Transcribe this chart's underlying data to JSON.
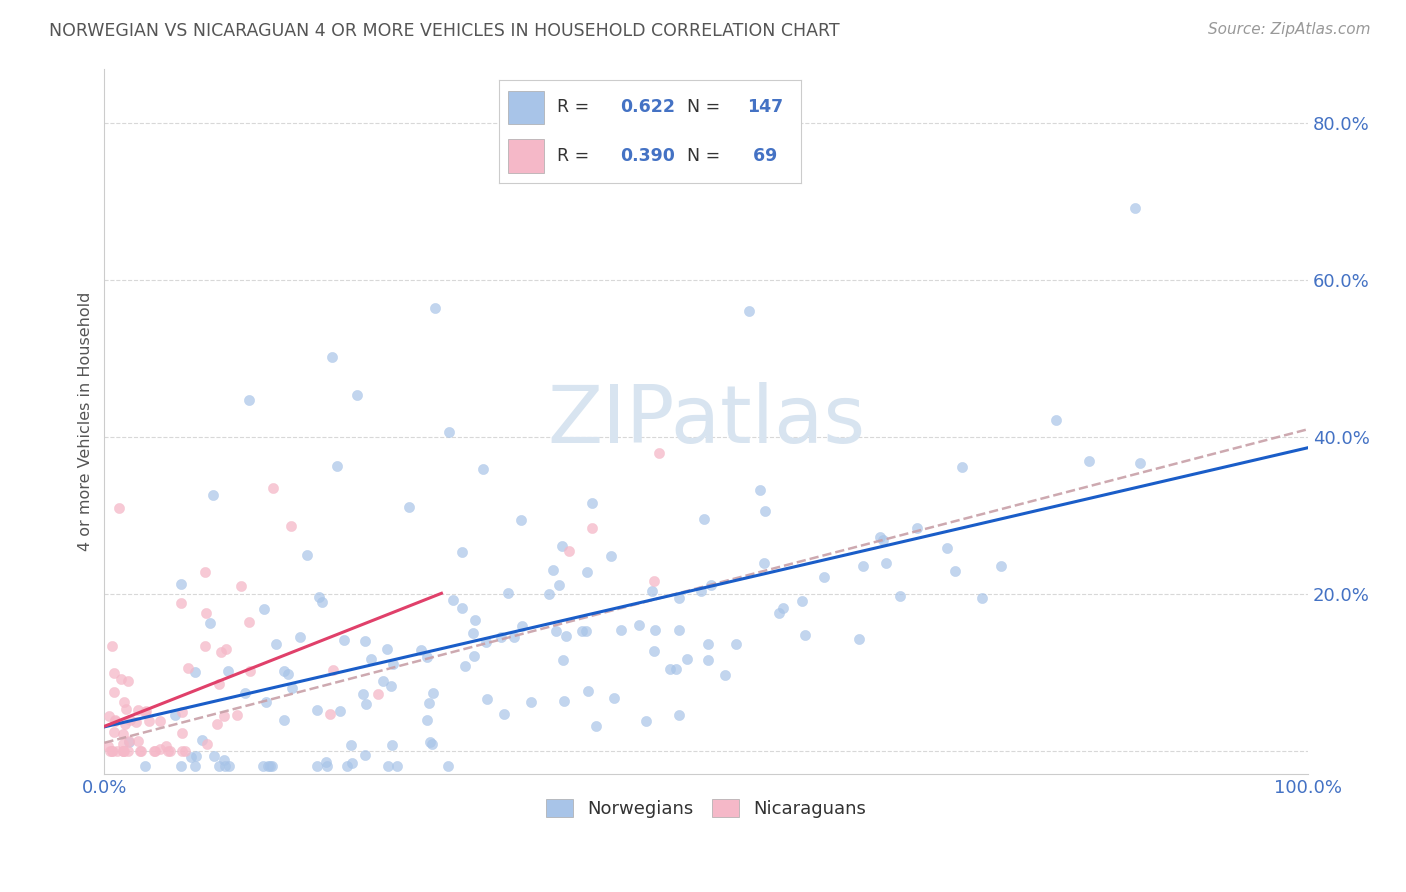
{
  "title": "NORWEGIAN VS NICARAGUAN 4 OR MORE VEHICLES IN HOUSEHOLD CORRELATION CHART",
  "source": "Source: ZipAtlas.com",
  "ylabel": "4 or more Vehicles in Household",
  "xlim": [
    0.0,
    1.0
  ],
  "ylim": [
    -0.03,
    0.87
  ],
  "norwegian_R": 0.622,
  "norwegian_N": 147,
  "nicaraguan_R": 0.39,
  "nicaraguan_N": 69,
  "norwegian_color": "#a8c4e8",
  "nicaraguan_color": "#f5b8c8",
  "norwegian_line_color": "#1a5dc8",
  "nicaraguan_solid_color": "#e0406a",
  "nicaraguan_dashed_color": "#c8a0a8",
  "background_color": "#ffffff",
  "grid_color": "#d8d8d8",
  "tick_label_color": "#4472c4",
  "title_color": "#555555",
  "source_color": "#999999",
  "ytick_vals": [
    0.0,
    0.2,
    0.4,
    0.6,
    0.8
  ],
  "ytick_labels": [
    "",
    "20.0%",
    "40.0%",
    "60.0%",
    "80.0%"
  ],
  "watermark_color": "#d8e4f0",
  "nor_seed": 12345,
  "nic_seed": 99
}
